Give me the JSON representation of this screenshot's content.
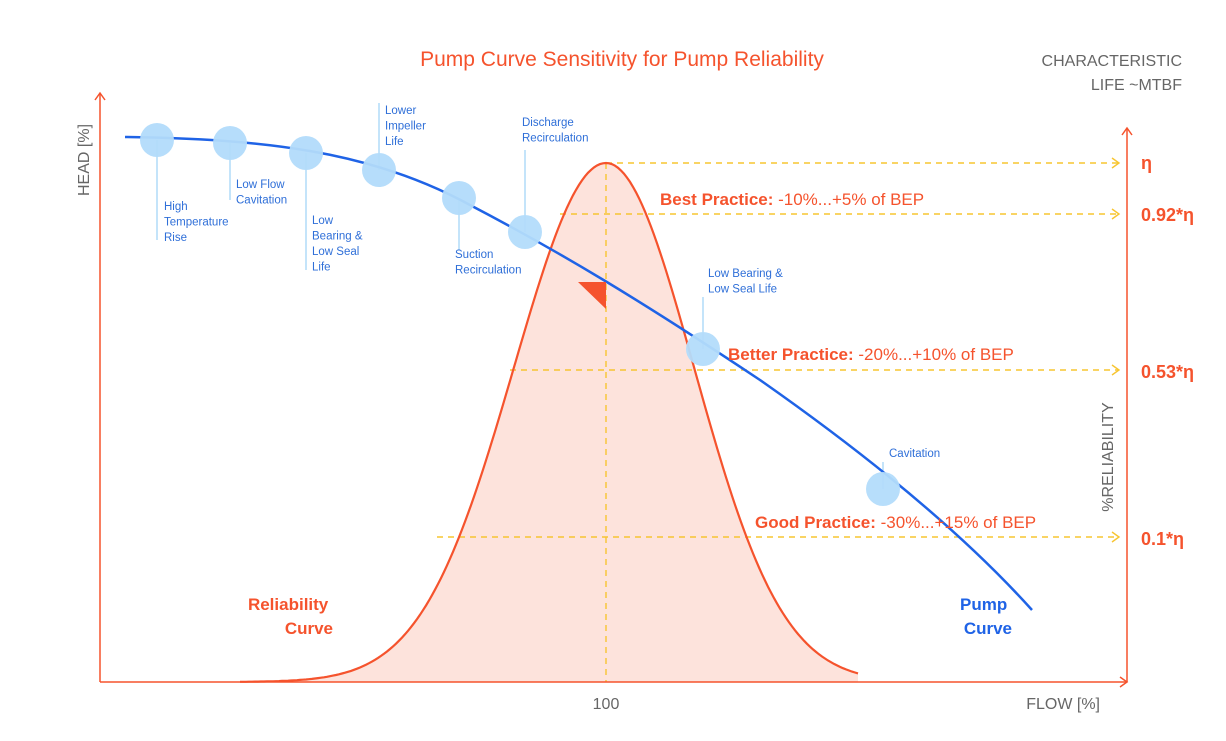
{
  "title": "Pump Curve Sensitivity for Pump Reliability",
  "corner_title": [
    "CHARACTERISTIC",
    "LIFE ~MTBF"
  ],
  "axes": {
    "y_left": "HEAD [%]",
    "y_right": "%RELIABILITY",
    "x": "FLOW [%]",
    "x_tick": "100"
  },
  "annotations": [
    {
      "lines": [
        "High",
        "Temperature",
        "Rise"
      ]
    },
    {
      "lines": [
        "Low Flow",
        "Cavitation"
      ]
    },
    {
      "lines": [
        "Low",
        "Bearing &",
        "Low Seal",
        "Life"
      ]
    },
    {
      "lines": [
        "Lower",
        "Impeller",
        "Life"
      ]
    },
    {
      "lines": [
        "Suction",
        "Recirculation"
      ]
    },
    {
      "lines": [
        "Discharge",
        "Recirculation"
      ]
    },
    {
      "lines": [
        "Low Bearing &",
        "Low Seal Life"
      ]
    },
    {
      "lines": [
        "Cavitation"
      ]
    }
  ],
  "bands": [
    {
      "bold": "Best Practice:",
      "rest": " -10%...+5% of BEP",
      "level": "0.92*η"
    },
    {
      "bold": "Better Practice:",
      "rest": " -20%...+10% of BEP",
      "level": "0.53*η"
    },
    {
      "bold": "Good Practice:",
      "rest": " -30%...+15% of BEP",
      "level": "0.1*η"
    }
  ],
  "peak_level": "η",
  "curves": {
    "reliability": [
      "Reliability",
      "Curve"
    ],
    "pump": [
      "Pump",
      "Curve"
    ]
  },
  "colors": {
    "orange": "#f5532d",
    "orange_fill": "#fde3dc",
    "blue": "#1f63e6",
    "dot": "#b3dcfb",
    "dot_line": "#8ac8f5",
    "yellow_dash": "#f7c531",
    "gray": "#666666",
    "annotation_text": "#2f6fd8"
  }
}
